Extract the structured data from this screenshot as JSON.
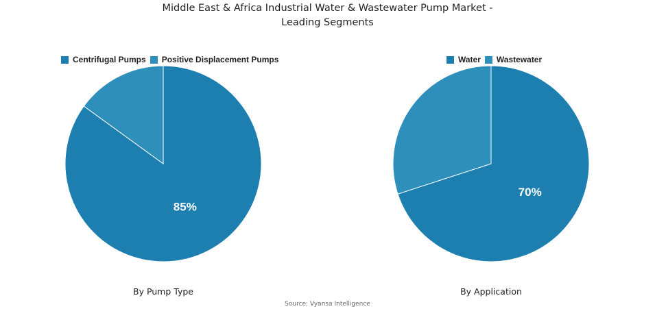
{
  "title_line1": "Middle East & Africa Industrial Water & Wastewater Pump Market -",
  "title_line2": "Leading Segments",
  "source": "Source: Vyansa Intelligence",
  "colors": {
    "primary": "#1c7fb0",
    "secondary": "#2f8fbb"
  },
  "chart_data": [
    {
      "type": "pie",
      "subtitle": "By Pump Type",
      "legend_position": "top",
      "categories": [
        "Centrifugal Pumps",
        "Positive Displacement Pumps"
      ],
      "values": [
        85,
        15
      ],
      "data_labels": [
        "85%",
        ""
      ]
    },
    {
      "type": "pie",
      "subtitle": "By Application",
      "legend_position": "top",
      "categories": [
        "Water",
        "Wastewater"
      ],
      "values": [
        70,
        30
      ],
      "data_labels": [
        "70%",
        ""
      ]
    }
  ]
}
